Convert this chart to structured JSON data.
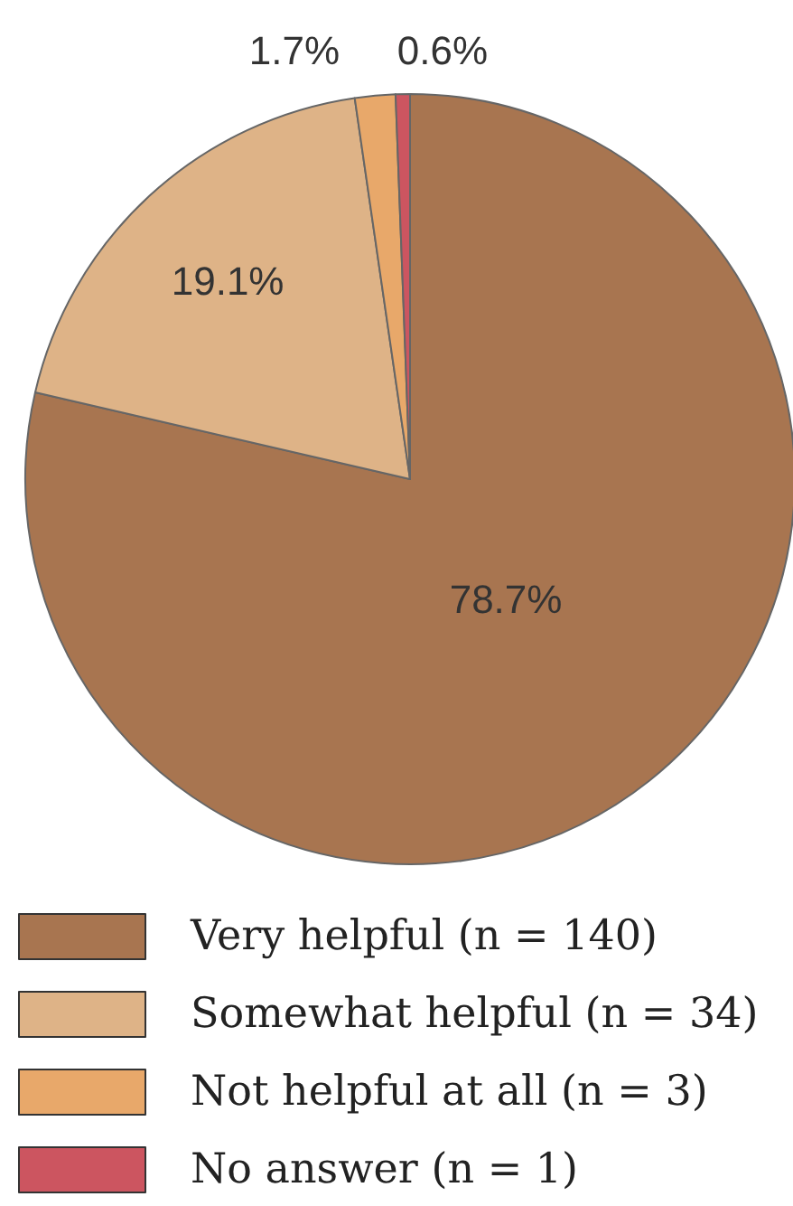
{
  "chart_data": {
    "type": "pie",
    "categories": [
      "Very helpful (n = 140)",
      "Somewhat helpful (n = 34)",
      "Not helpful at all (n = 3)",
      "No answer (n = 1)"
    ],
    "values": [
      78.7,
      19.1,
      1.7,
      0.6
    ],
    "colors": [
      "#a87550",
      "#deb387",
      "#e8a86a",
      "#cc5560"
    ],
    "value_labels": [
      "78.7%",
      "19.1%",
      "1.7%",
      "0.6%"
    ],
    "legend": "bottom"
  }
}
